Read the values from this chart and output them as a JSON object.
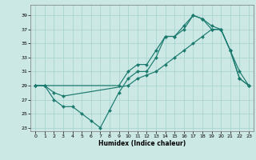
{
  "xlabel": "Humidex (Indice chaleur)",
  "xlim": [
    -0.5,
    23.5
  ],
  "ylim": [
    22.5,
    40.5
  ],
  "yticks": [
    23,
    25,
    27,
    29,
    31,
    33,
    35,
    37,
    39
  ],
  "xticks": [
    0,
    1,
    2,
    3,
    4,
    5,
    6,
    7,
    8,
    9,
    10,
    11,
    12,
    13,
    14,
    15,
    16,
    17,
    18,
    19,
    20,
    21,
    22,
    23
  ],
  "bg_color": "#cce8e5",
  "grid_color": "#aad4d0",
  "line_color": "#1a7a6e",
  "line1_x": [
    0,
    1,
    2,
    3,
    4,
    5,
    6,
    7,
    8,
    9,
    10,
    11,
    12,
    13,
    14,
    15,
    16,
    17,
    18,
    19,
    20,
    21,
    22,
    23
  ],
  "line1_y": [
    29,
    29,
    27,
    26,
    26,
    25,
    24,
    23,
    25.5,
    28,
    30,
    31,
    31,
    33,
    36,
    36,
    37,
    39,
    38.5,
    37,
    37,
    34,
    31,
    29
  ],
  "line1_markers_x": [
    0,
    1,
    2,
    3,
    5,
    6,
    7,
    8,
    9,
    10,
    11,
    13,
    14,
    15,
    16,
    17,
    18,
    19,
    21,
    22,
    23
  ],
  "line1_markers_y": [
    29,
    29,
    27,
    26,
    25,
    24,
    23,
    25.5,
    28,
    30,
    31,
    33,
    36,
    36,
    37,
    39,
    38.5,
    37,
    34,
    31,
    29
  ],
  "line2_x": [
    0,
    1,
    2,
    3,
    10,
    11,
    12,
    13,
    14,
    15,
    16,
    17,
    18,
    19,
    20,
    21,
    22,
    23
  ],
  "line2_y": [
    29,
    29,
    28,
    27.5,
    29,
    30,
    30.5,
    31,
    32,
    33,
    34,
    35,
    36,
    37,
    37,
    34,
    30,
    29
  ],
  "line3_x": [
    0,
    9,
    10,
    11,
    12,
    13,
    14,
    15,
    16,
    17,
    18,
    19,
    20,
    21,
    22,
    23
  ],
  "line3_y": [
    29,
    29,
    31,
    32,
    32,
    34,
    36,
    36,
    37.5,
    39,
    38.5,
    37.5,
    37,
    34,
    30,
    29
  ]
}
